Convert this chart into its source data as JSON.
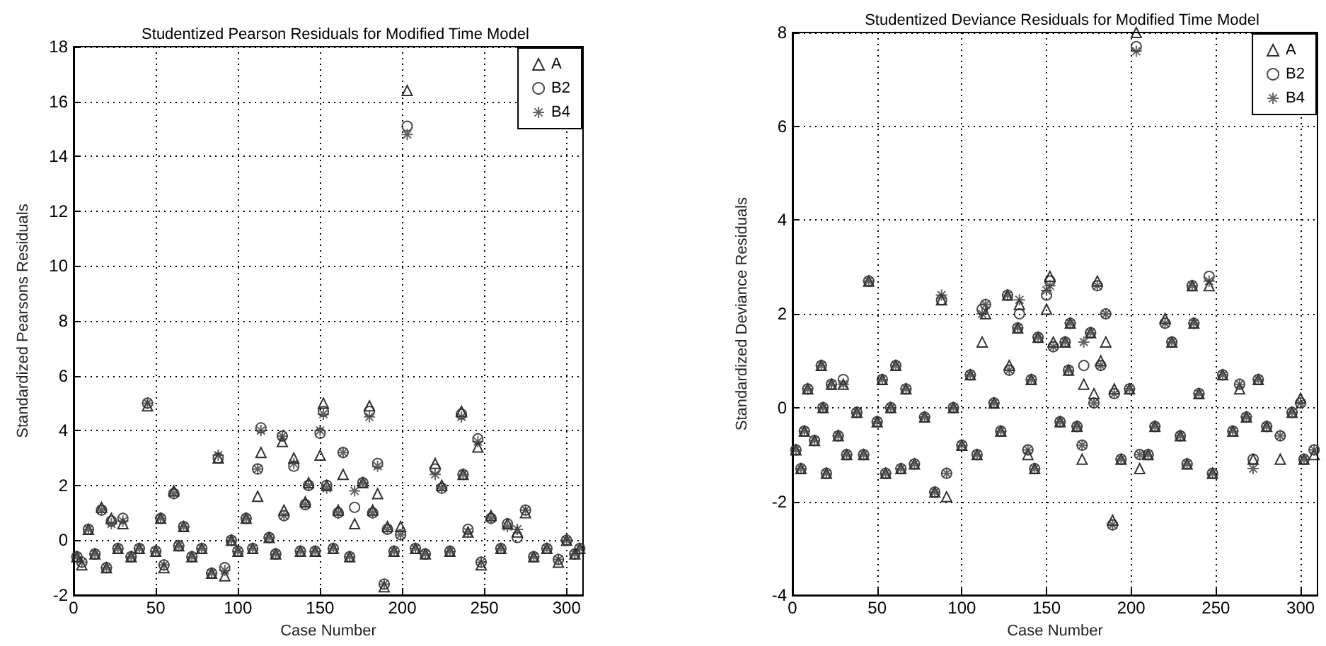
{
  "chart_data": [
    {
      "type": "scatter",
      "title": "Studentized Pearson Residuals for Modified Time Model",
      "xlabel": "Case Number",
      "ylabel": "Standardized Pearsons Residuals",
      "xlim": [
        0,
        310
      ],
      "xticks": [
        0,
        50,
        100,
        150,
        200,
        250,
        300
      ],
      "ylim": [
        -2,
        18
      ],
      "yticks": [
        -2,
        0,
        2,
        4,
        6,
        8,
        10,
        12,
        14,
        16,
        18
      ],
      "grid": true,
      "legend": "top right",
      "x": [
        2,
        5,
        9,
        13,
        17,
        20,
        23,
        27,
        30,
        35,
        40,
        45,
        50,
        53,
        55,
        61,
        64,
        67,
        72,
        78,
        84,
        88,
        92,
        96,
        100,
        105,
        109,
        112,
        114,
        119,
        123,
        127,
        128,
        134,
        138,
        141,
        143,
        147,
        150,
        152,
        154,
        158,
        161,
        164,
        168,
        171,
        176,
        180,
        182,
        185,
        189,
        191,
        195,
        199,
        203,
        208,
        214,
        220,
        224,
        229,
        236,
        237,
        240,
        246,
        248,
        254,
        260,
        264,
        270,
        275,
        280,
        288,
        295,
        300,
        305,
        308
      ],
      "series": [
        {
          "name": "A",
          "color": "#000000",
          "marker": "triangle",
          "values": [
            -0.6,
            -0.9,
            0.4,
            -0.5,
            1.2,
            -1.0,
            0.8,
            -0.3,
            0.6,
            -0.6,
            -0.3,
            4.9,
            -0.4,
            0.8,
            -1.0,
            1.8,
            -0.2,
            0.5,
            -0.6,
            -0.3,
            -1.2,
            3.0,
            -1.3,
            0.0,
            -0.4,
            0.8,
            -0.3,
            1.6,
            3.2,
            0.1,
            -0.5,
            3.6,
            1.1,
            3.0,
            -0.4,
            1.4,
            2.1,
            -0.4,
            3.1,
            5.0,
            2.0,
            -0.3,
            1.1,
            2.4,
            -0.6,
            0.6,
            2.1,
            4.9,
            1.1,
            1.7,
            -1.7,
            0.5,
            -0.4,
            0.5,
            16.4,
            -0.3,
            -0.5,
            2.8,
            2.0,
            -0.4,
            4.7,
            2.4,
            0.3,
            3.4,
            -0.9,
            0.9,
            -0.3,
            0.6,
            0.3,
            1.0,
            -0.6,
            -0.3,
            -0.8,
            0.0,
            -0.5,
            -0.3
          ]
        },
        {
          "name": "B2",
          "color": "#1e1e1e",
          "marker": "circle",
          "values": [
            -0.6,
            -0.8,
            0.4,
            -0.5,
            1.1,
            -1.0,
            0.7,
            -0.3,
            0.8,
            -0.6,
            -0.3,
            5.0,
            -0.4,
            0.8,
            -0.9,
            1.7,
            -0.2,
            0.5,
            -0.6,
            -0.3,
            -1.2,
            3.0,
            -1.0,
            0.0,
            -0.4,
            0.8,
            -0.3,
            2.6,
            4.1,
            0.1,
            -0.5,
            3.8,
            0.9,
            2.7,
            -0.4,
            1.3,
            2.0,
            -0.4,
            3.9,
            4.7,
            2.0,
            -0.3,
            1.0,
            3.2,
            -0.6,
            1.2,
            2.1,
            4.7,
            1.0,
            2.8,
            -1.6,
            0.4,
            -0.4,
            0.2,
            15.1,
            -0.3,
            -0.5,
            2.6,
            1.9,
            -0.4,
            4.6,
            2.4,
            0.4,
            3.7,
            -0.8,
            0.8,
            -0.3,
            0.6,
            0.1,
            1.1,
            -0.6,
            -0.3,
            -0.7,
            0.0,
            -0.5,
            -0.3
          ]
        },
        {
          "name": "B4",
          "color": "#3c3c3c",
          "marker": "cross",
          "values": [
            -0.6,
            -0.8,
            0.4,
            -0.5,
            1.1,
            -1.0,
            0.6,
            -0.3,
            0.7,
            -0.6,
            -0.3,
            5.0,
            -0.4,
            0.8,
            -0.9,
            1.7,
            -0.2,
            0.5,
            -0.6,
            -0.3,
            -1.2,
            3.1,
            -1.1,
            0.0,
            -0.4,
            0.8,
            -0.3,
            2.6,
            4.0,
            0.1,
            -0.5,
            3.8,
            0.9,
            2.8,
            -0.4,
            1.3,
            2.0,
            -0.4,
            4.0,
            4.6,
            1.9,
            -0.3,
            1.0,
            3.2,
            -0.6,
            1.8,
            2.1,
            4.5,
            1.0,
            2.7,
            -1.6,
            0.4,
            -0.4,
            0.2,
            14.8,
            -0.3,
            -0.5,
            2.4,
            1.9,
            -0.4,
            4.5,
            2.4,
            0.3,
            3.6,
            -0.8,
            0.8,
            -0.3,
            0.5,
            0.4,
            1.1,
            -0.6,
            -0.3,
            -0.7,
            0.0,
            -0.5,
            -0.3
          ]
        }
      ]
    },
    {
      "type": "scatter",
      "title": "Studentized Deviance Residuals for Modified Time Model",
      "xlabel": "Case Number",
      "ylabel": "Standardized Deviance Residuals",
      "xlim": [
        0,
        310
      ],
      "xticks": [
        0,
        50,
        100,
        150,
        200,
        250,
        300
      ],
      "ylim": [
        -4,
        8
      ],
      "yticks": [
        -4,
        -2,
        0,
        2,
        4,
        6,
        8
      ],
      "grid": true,
      "legend": "top right",
      "x": [
        2,
        5,
        7,
        9,
        13,
        17,
        18,
        20,
        23,
        27,
        30,
        32,
        38,
        42,
        45,
        50,
        53,
        55,
        58,
        61,
        64,
        67,
        72,
        78,
        84,
        88,
        91,
        95,
        100,
        105,
        109,
        112,
        114,
        119,
        123,
        127,
        128,
        133,
        134,
        139,
        141,
        143,
        145,
        150,
        152,
        154,
        158,
        161,
        163,
        164,
        168,
        171,
        172,
        176,
        178,
        180,
        182,
        185,
        189,
        190,
        194,
        199,
        203,
        205,
        210,
        214,
        220,
        224,
        229,
        233,
        236,
        237,
        240,
        246,
        248,
        254,
        260,
        264,
        268,
        272,
        275,
        280,
        288,
        295,
        300,
        302,
        308
      ],
      "series": [
        {
          "name": "A",
          "color": "#000000",
          "marker": "triangle",
          "values": [
            -0.9,
            -1.3,
            -0.5,
            0.4,
            -0.7,
            0.9,
            0.0,
            -1.4,
            0.5,
            -0.6,
            0.5,
            -1.0,
            -0.1,
            -1.0,
            2.7,
            -0.3,
            0.6,
            -1.4,
            0.0,
            0.9,
            -1.3,
            0.4,
            -1.2,
            -0.2,
            -1.8,
            2.3,
            -1.9,
            0.0,
            -0.8,
            0.7,
            -1.0,
            1.4,
            2.0,
            0.1,
            -0.5,
            2.4,
            0.9,
            1.7,
            2.2,
            -1.0,
            0.6,
            -1.3,
            1.5,
            2.1,
            2.8,
            1.4,
            -0.3,
            1.4,
            0.8,
            1.8,
            -0.4,
            -1.1,
            0.5,
            1.6,
            0.3,
            2.7,
            1.0,
            1.4,
            -2.4,
            0.4,
            -1.1,
            0.4,
            8.0,
            -1.3,
            -1.0,
            -0.4,
            1.9,
            1.4,
            -0.6,
            -1.2,
            2.6,
            1.8,
            0.3,
            2.6,
            -1.4,
            0.7,
            -0.5,
            0.4,
            -0.2,
            -1.1,
            0.6,
            -0.4,
            -1.1,
            -0.1,
            0.2,
            -1.1,
            -1.0
          ]
        },
        {
          "name": "B2",
          "color": "#1e1e1e",
          "marker": "circle",
          "values": [
            -0.9,
            -1.3,
            -0.5,
            0.4,
            -0.7,
            0.9,
            0.0,
            -1.4,
            0.5,
            -0.6,
            0.6,
            -1.0,
            -0.1,
            -1.0,
            2.7,
            -0.3,
            0.6,
            -1.4,
            0.0,
            0.9,
            -1.3,
            0.4,
            -1.2,
            -0.2,
            -1.8,
            2.3,
            -1.4,
            0.0,
            -0.8,
            0.7,
            -1.0,
            2.1,
            2.2,
            0.1,
            -0.5,
            2.4,
            0.8,
            1.7,
            2.0,
            -0.9,
            0.6,
            -1.3,
            1.5,
            2.4,
            2.7,
            1.3,
            -0.3,
            1.4,
            0.8,
            1.8,
            -0.4,
            -0.8,
            0.9,
            1.6,
            0.1,
            2.6,
            0.9,
            2.0,
            -2.5,
            0.3,
            -1.1,
            0.4,
            7.7,
            -1.0,
            -1.0,
            -0.4,
            1.8,
            1.4,
            -0.6,
            -1.2,
            2.6,
            1.8,
            0.3,
            2.8,
            -1.4,
            0.7,
            -0.5,
            0.5,
            -0.2,
            -1.1,
            0.6,
            -0.4,
            -0.6,
            -0.1,
            0.1,
            -1.1,
            -0.9
          ]
        },
        {
          "name": "B4",
          "color": "#3c3c3c",
          "marker": "cross",
          "values": [
            -0.9,
            -1.3,
            -0.5,
            0.4,
            -0.7,
            0.9,
            0.0,
            -1.4,
            0.5,
            -0.6,
            0.5,
            -1.0,
            -0.1,
            -1.0,
            2.7,
            -0.3,
            0.6,
            -1.4,
            0.0,
            0.9,
            -1.3,
            0.4,
            -1.2,
            -0.2,
            -1.8,
            2.4,
            -1.4,
            0.0,
            -0.8,
            0.7,
            -1.0,
            2.0,
            2.2,
            0.1,
            -0.5,
            2.4,
            0.8,
            1.7,
            2.3,
            -0.9,
            0.6,
            -1.3,
            1.5,
            2.5,
            2.6,
            1.3,
            -0.3,
            1.4,
            0.8,
            1.8,
            -0.4,
            -0.8,
            1.4,
            1.6,
            0.1,
            2.6,
            0.9,
            2.0,
            -2.5,
            0.3,
            -1.1,
            0.4,
            7.6,
            -1.0,
            -1.0,
            -0.4,
            1.8,
            1.4,
            -0.6,
            -1.2,
            2.6,
            1.8,
            0.3,
            2.7,
            -1.4,
            0.7,
            -0.5,
            0.5,
            -0.2,
            -1.3,
            0.6,
            -0.4,
            -0.6,
            -0.1,
            0.1,
            -1.1,
            -0.9
          ]
        }
      ]
    }
  ]
}
